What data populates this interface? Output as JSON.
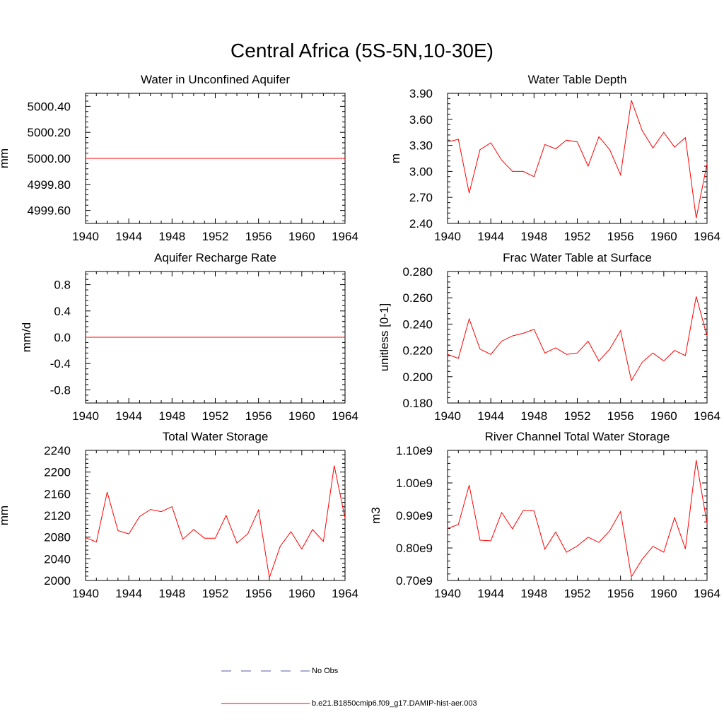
{
  "figure": {
    "title": "Central Africa (5S-5N,10-30E)"
  },
  "legend": {
    "entries": [
      {
        "label": "No Obs",
        "color": "#5a5aa8",
        "style": "dashed"
      },
      {
        "label": "b.e21.B1850cmip6.f09_g17.DAMIP-hist-aer.003",
        "color": "#ff0000",
        "style": "solid"
      }
    ]
  },
  "chart_data": [
    {
      "type": "line",
      "title": "Water in Unconfined Aquifer",
      "xlabel": "",
      "ylabel": "mm",
      "xlim": [
        1940,
        1964
      ],
      "ylim": [
        4999.5,
        5000.5
      ],
      "xticks": [
        "1940",
        "1944",
        "1948",
        "1952",
        "1956",
        "1960",
        "1964"
      ],
      "yticks": [
        "4999.60",
        "4999.80",
        "5000.00",
        "5000.20",
        "5000.40"
      ],
      "x": [
        1940,
        1964
      ],
      "series": [
        {
          "name": "b.e21.B1850cmip6.f09_g17.DAMIP-hist-aer.003",
          "color": "#ff0000",
          "values": [
            5000.0,
            5000.0
          ]
        }
      ]
    },
    {
      "type": "line",
      "title": "Water Table Depth",
      "xlabel": "",
      "ylabel": "m",
      "xlim": [
        1940,
        1964
      ],
      "ylim": [
        2.4,
        3.9
      ],
      "xticks": [
        "1940",
        "1944",
        "1948",
        "1952",
        "1956",
        "1960",
        "1964"
      ],
      "yticks": [
        "2.40",
        "2.70",
        "3.00",
        "3.30",
        "3.60",
        "3.90"
      ],
      "x": [
        1940,
        1941,
        1942,
        1943,
        1944,
        1945,
        1946,
        1947,
        1948,
        1949,
        1950,
        1951,
        1952,
        1953,
        1954,
        1955,
        1956,
        1957,
        1958,
        1959,
        1960,
        1961,
        1962,
        1963,
        1964
      ],
      "series": [
        {
          "name": "b.e21.B1850cmip6.f09_g17.DAMIP-hist-aer.003",
          "color": "#ff0000",
          "values": [
            3.34,
            3.37,
            2.75,
            3.25,
            3.33,
            3.13,
            3.0,
            3.0,
            2.94,
            3.31,
            3.26,
            3.36,
            3.34,
            3.06,
            3.4,
            3.25,
            2.96,
            3.82,
            3.47,
            3.27,
            3.45,
            3.28,
            3.39,
            2.46,
            3.09
          ]
        }
      ]
    },
    {
      "type": "line",
      "title": "Aquifer Recharge Rate",
      "xlabel": "",
      "ylabel": "mm/d",
      "xlim": [
        1940,
        1964
      ],
      "ylim": [
        -1.0,
        1.0
      ],
      "xticks": [
        "1940",
        "1944",
        "1948",
        "1952",
        "1956",
        "1960",
        "1964"
      ],
      "yticks": [
        "-0.8",
        "-0.4",
        "0.0",
        "0.4",
        "0.8"
      ],
      "x": [
        1940,
        1964
      ],
      "series": [
        {
          "name": "b.e21.B1850cmip6.f09_g17.DAMIP-hist-aer.003",
          "color": "#ff0000",
          "values": [
            0.0,
            0.0
          ]
        }
      ]
    },
    {
      "type": "line",
      "title": "Frac Water Table at Surface",
      "xlabel": "",
      "ylabel": "unitless [0-1]",
      "xlim": [
        1940,
        1964
      ],
      "ylim": [
        0.18,
        0.28
      ],
      "xticks": [
        "1940",
        "1944",
        "1948",
        "1952",
        "1956",
        "1960",
        "1964"
      ],
      "yticks": [
        "0.180",
        "0.200",
        "0.220",
        "0.240",
        "0.260",
        "0.280"
      ],
      "x": [
        1940,
        1941,
        1942,
        1943,
        1944,
        1945,
        1946,
        1947,
        1948,
        1949,
        1950,
        1951,
        1952,
        1953,
        1954,
        1955,
        1956,
        1957,
        1958,
        1959,
        1960,
        1961,
        1962,
        1963,
        1964
      ],
      "series": [
        {
          "name": "b.e21.B1850cmip6.f09_g17.DAMIP-hist-aer.003",
          "color": "#ff0000",
          "values": [
            0.217,
            0.214,
            0.244,
            0.221,
            0.217,
            0.227,
            0.231,
            0.233,
            0.236,
            0.218,
            0.222,
            0.217,
            0.218,
            0.227,
            0.212,
            0.221,
            0.235,
            0.197,
            0.211,
            0.218,
            0.212,
            0.22,
            0.216,
            0.261,
            0.231
          ]
        }
      ]
    },
    {
      "type": "line",
      "title": "Total Water Storage",
      "xlabel": "",
      "ylabel": "mm",
      "xlim": [
        1940,
        1964
      ],
      "ylim": [
        2000,
        2240
      ],
      "xticks": [
        "1940",
        "1944",
        "1948",
        "1952",
        "1956",
        "1960",
        "1964"
      ],
      "yticks": [
        "2000",
        "2040",
        "2080",
        "2120",
        "2160",
        "2200",
        "2240"
      ],
      "x": [
        1940,
        1941,
        1942,
        1943,
        1944,
        1945,
        1946,
        1947,
        1948,
        1949,
        1950,
        1951,
        1952,
        1953,
        1954,
        1955,
        1956,
        1957,
        1958,
        1959,
        1960,
        1961,
        1962,
        1963,
        1964
      ],
      "series": [
        {
          "name": "b.e21.B1850cmip6.f09_g17.DAMIP-hist-aer.003",
          "color": "#ff0000",
          "values": [
            2079,
            2071,
            2163,
            2092,
            2086,
            2118,
            2131,
            2127,
            2136,
            2076,
            2094,
            2078,
            2078,
            2120,
            2069,
            2086,
            2130,
            2005,
            2063,
            2090,
            2058,
            2094,
            2072,
            2212,
            2115
          ]
        }
      ]
    },
    {
      "type": "line",
      "title": "River Channel Total Water Storage",
      "xlabel": "",
      "ylabel": "m3",
      "xlim": [
        1940,
        1964
      ],
      "ylim": [
        700000000.0,
        1100000000.0
      ],
      "xticks": [
        "1940",
        "1944",
        "1948",
        "1952",
        "1956",
        "1960",
        "1964"
      ],
      "yticks": [
        "0.70e9",
        "0.80e9",
        "0.90e9",
        "1.00e9",
        "1.10e9"
      ],
      "x": [
        1940,
        1941,
        1942,
        1943,
        1944,
        1945,
        1946,
        1947,
        1948,
        1949,
        1950,
        1951,
        1952,
        1953,
        1954,
        1955,
        1956,
        1957,
        1958,
        1959,
        1960,
        1961,
        1962,
        1963,
        1964
      ],
      "series": [
        {
          "name": "b.e21.B1850cmip6.f09_g17.DAMIP-hist-aer.003",
          "color": "#ff0000",
          "values": [
            860000000.0,
            872000000.0,
            993000000.0,
            824000000.0,
            822000000.0,
            909000000.0,
            859000000.0,
            915000000.0,
            914000000.0,
            796000000.0,
            849000000.0,
            787000000.0,
            806000000.0,
            833000000.0,
            817000000.0,
            853000000.0,
            912000000.0,
            711000000.0,
            765000000.0,
            805000000.0,
            787000000.0,
            893000000.0,
            797000000.0,
            1070000000.0,
            875000000.0
          ]
        }
      ]
    }
  ]
}
